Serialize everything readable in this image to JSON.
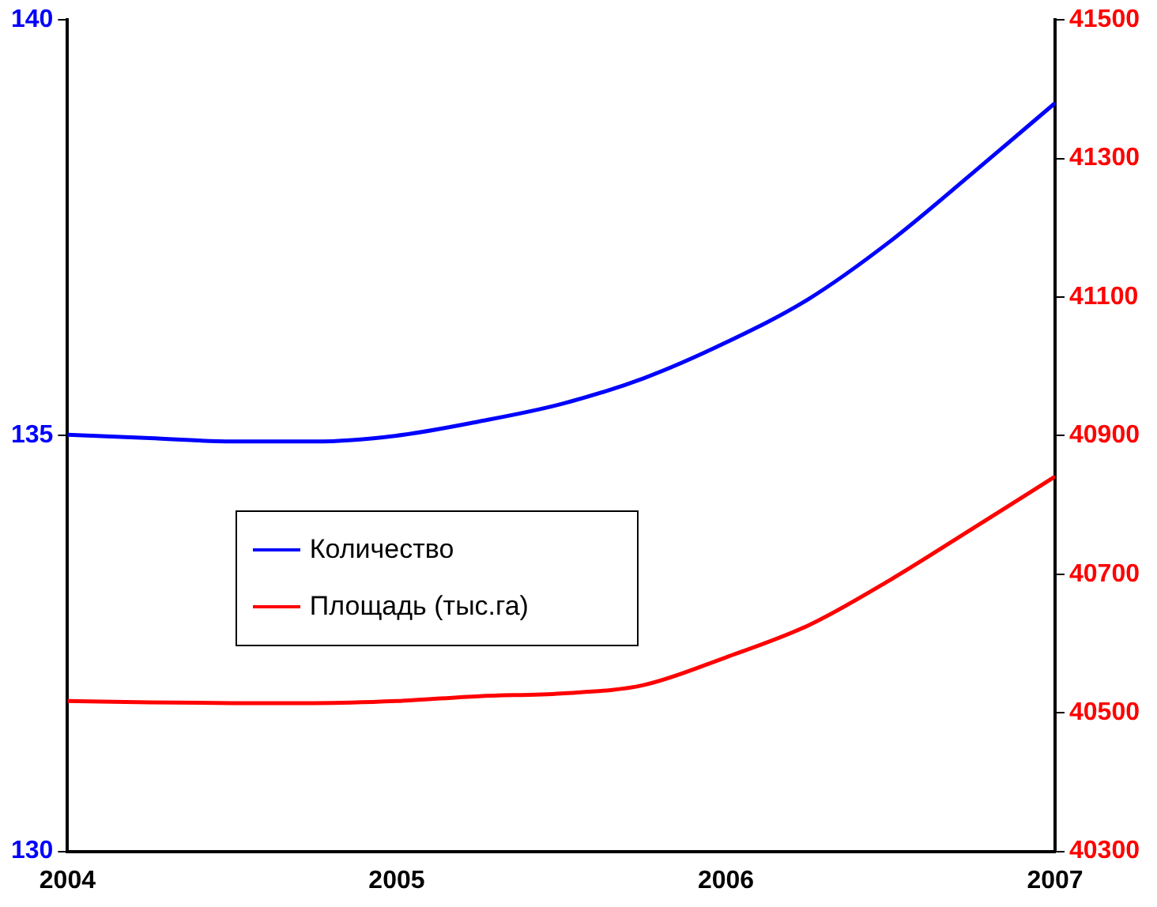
{
  "chart_data": {
    "type": "line",
    "x": [
      2004,
      2004.25,
      2004.5,
      2004.75,
      2005,
      2005.25,
      2005.5,
      2005.75,
      2006,
      2006.25,
      2006.5,
      2006.75,
      2007
    ],
    "series": [
      {
        "name": "Количество",
        "color": "#0000ff",
        "values": [
          135.01,
          134.97,
          134.93,
          134.93,
          135.0,
          135.17,
          135.38,
          135.69,
          136.12,
          136.64,
          137.34,
          138.16,
          139.0
        ]
      },
      {
        "name": "Площадь (тыс.га)",
        "color": "#ff0000",
        "axis": "y2",
        "values": [
          40517,
          40515,
          40514,
          40514,
          40517,
          40524,
          40528,
          40540,
          40580,
          40626,
          40692,
          40766,
          40841
        ]
      }
    ],
    "xlim": [
      2004,
      2007
    ],
    "xticks": [
      2004,
      2005,
      2006,
      2007
    ],
    "ylim": [
      130,
      140
    ],
    "yticks": [
      130,
      135,
      140
    ],
    "y2lim": [
      40300,
      41500
    ],
    "y2ticks": [
      40300,
      40500,
      40700,
      40900,
      41100,
      41300,
      41500
    ],
    "grid": false,
    "legend": "center left",
    "marker": "none",
    "line_style": "solid"
  }
}
